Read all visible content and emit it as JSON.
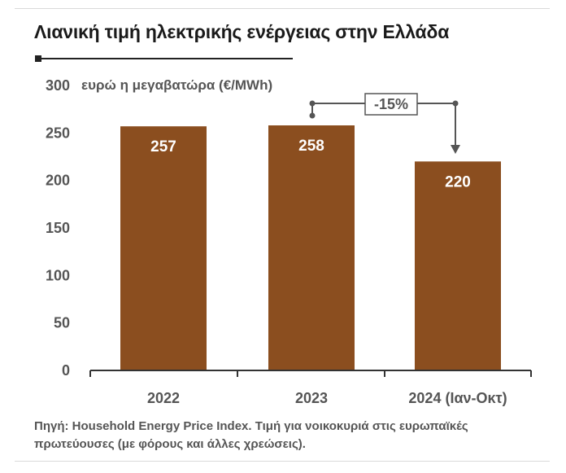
{
  "title": "Λιανική τιμή ηλεκτρικής ενέργειας στην Ελλάδα",
  "source": "Πηγή: Household Energy Price Index. Τιμή για νοικοκυριά στις ευρωπαϊκές πρωτεύουσες (με φόρους και άλλες χρεώσεις).",
  "colors": {
    "bar": "#8b4e1f",
    "axis_text": "#555555",
    "label_text": "#ffffff",
    "annotation": "#555555"
  },
  "chart_data": {
    "type": "bar",
    "title": "Λιανική τιμή ηλεκτρικής ενέργειας στην Ελλάδα",
    "ylabel": "ευρώ η μεγαβατώρα (€/MWh)",
    "xlabel": "",
    "categories": [
      "2022",
      "2023",
      "2024 (Ιαν-Οκτ)"
    ],
    "values": [
      257,
      258,
      220
    ],
    "data_labels": [
      "257",
      "258",
      "220"
    ],
    "ylim": [
      0,
      300
    ],
    "yticks": [
      "0",
      "50",
      "100",
      "150",
      "200",
      "250",
      "300"
    ],
    "grid": false,
    "annotation": {
      "text": "-15%",
      "from_category": "2023",
      "to_category": "2024 (Ιαν-Οκτ)"
    }
  }
}
